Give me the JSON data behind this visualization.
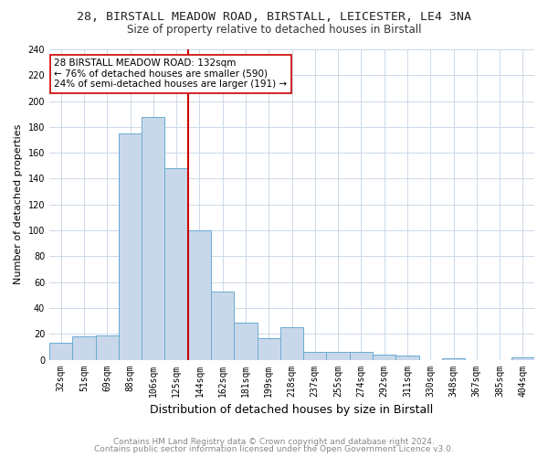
{
  "title_line1": "28, BIRSTALL MEADOW ROAD, BIRSTALL, LEICESTER, LE4 3NA",
  "title_line2": "Size of property relative to detached houses in Birstall",
  "xlabel": "Distribution of detached houses by size in Birstall",
  "ylabel": "Number of detached properties",
  "categories": [
    "32sqm",
    "51sqm",
    "69sqm",
    "88sqm",
    "106sqm",
    "125sqm",
    "144sqm",
    "162sqm",
    "181sqm",
    "199sqm",
    "218sqm",
    "237sqm",
    "255sqm",
    "274sqm",
    "292sqm",
    "311sqm",
    "330sqm",
    "348sqm",
    "367sqm",
    "385sqm",
    "404sqm"
  ],
  "values": [
    13,
    18,
    19,
    175,
    188,
    148,
    100,
    53,
    29,
    17,
    25,
    6,
    6,
    6,
    4,
    3,
    0,
    1,
    0,
    0,
    2
  ],
  "bar_color": "#c8d8ea",
  "bar_edge_color": "#6aaad4",
  "ref_line_color": "#cc0000",
  "annotation_text": "28 BIRSTALL MEADOW ROAD: 132sqm\n← 76% of detached houses are smaller (590)\n24% of semi-detached houses are larger (191) →",
  "annotation_box_color": "#ffffff",
  "annotation_box_edge": "#cc0000",
  "footer_line1": "Contains HM Land Registry data © Crown copyright and database right 2024.",
  "footer_line2": "Contains public sector information licensed under the Open Government Licence v3.0.",
  "ylim": [
    0,
    240
  ],
  "yticks": [
    0,
    20,
    40,
    60,
    80,
    100,
    120,
    140,
    160,
    180,
    200,
    220,
    240
  ],
  "background_color": "#ffffff",
  "grid_color": "#ccd9e8",
  "title1_fontsize": 9.5,
  "title2_fontsize": 8.5,
  "xlabel_fontsize": 9,
  "ylabel_fontsize": 8,
  "tick_fontsize": 7,
  "annotation_fontsize": 7.5,
  "footer_fontsize": 6.5
}
